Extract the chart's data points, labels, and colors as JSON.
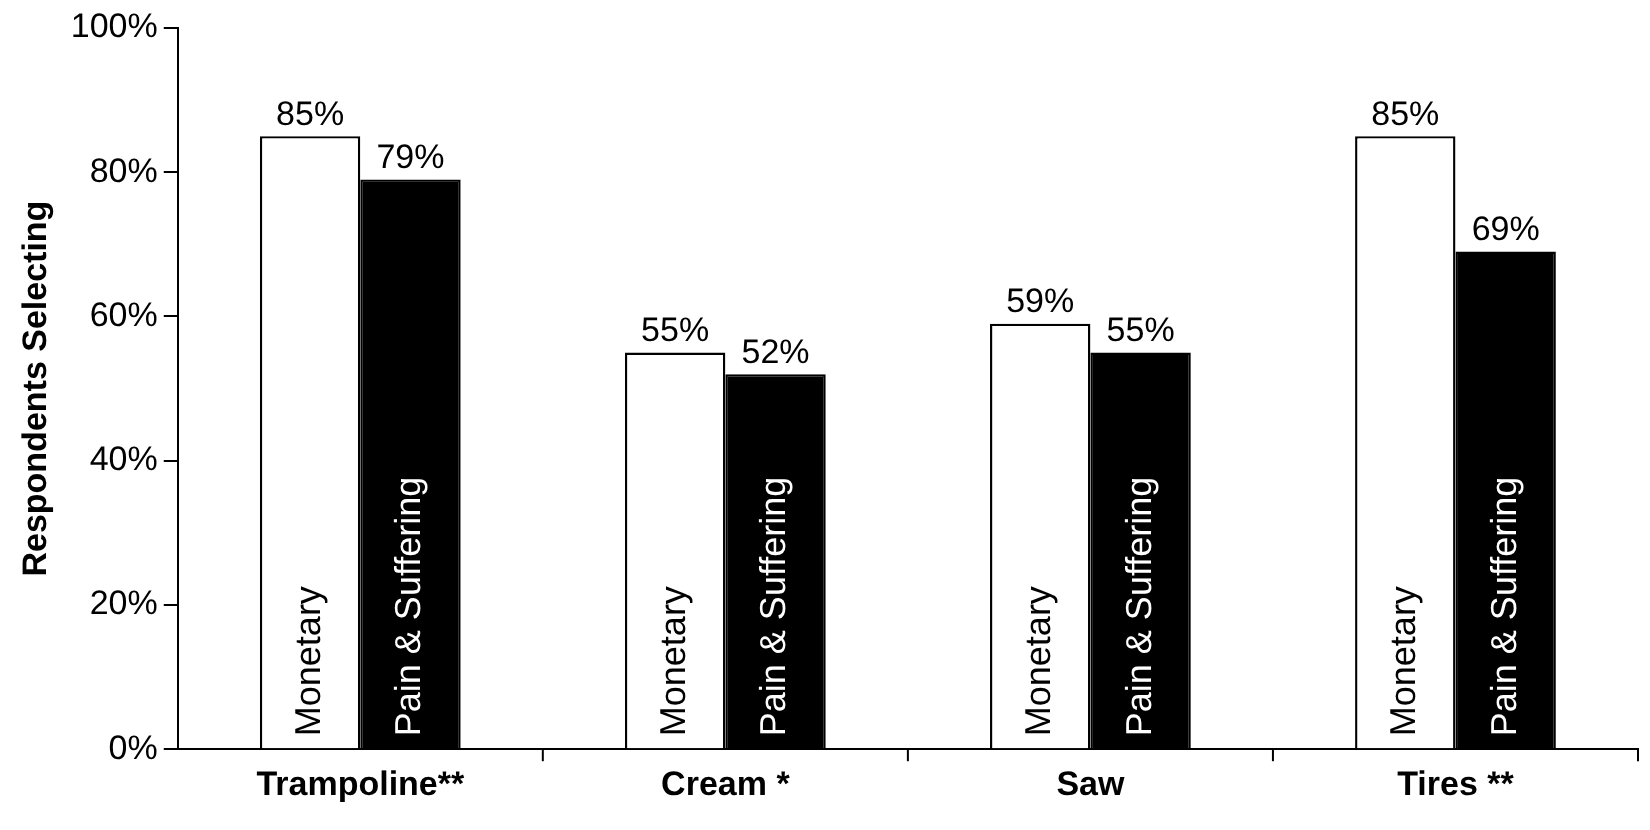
{
  "chart_data": {
    "type": "bar",
    "ylabel": "Respondents Selecting",
    "categories": [
      "Trampoline**",
      "Cream *",
      "Saw",
      "Tires **"
    ],
    "series": [
      {
        "name": "Monetary",
        "color": "#ffffff",
        "values": [
          85,
          55,
          59,
          85
        ],
        "value_labels": [
          "85%",
          "55%",
          "59%",
          "85%"
        ]
      },
      {
        "name": "Pain & Suffering",
        "color": "#000000",
        "values": [
          79,
          52,
          55,
          69
        ],
        "value_labels": [
          "79%",
          "52%",
          "55%",
          "69%"
        ]
      }
    ],
    "ylim": [
      0,
      100
    ],
    "yticks": [
      {
        "value": 0,
        "label": "0%"
      },
      {
        "value": 20,
        "label": "20%"
      },
      {
        "value": 40,
        "label": "40%"
      },
      {
        "value": 60,
        "label": "60%"
      },
      {
        "value": 80,
        "label": "80%"
      },
      {
        "value": 100,
        "label": "100%"
      }
    ],
    "grid": false,
    "legend": false
  }
}
